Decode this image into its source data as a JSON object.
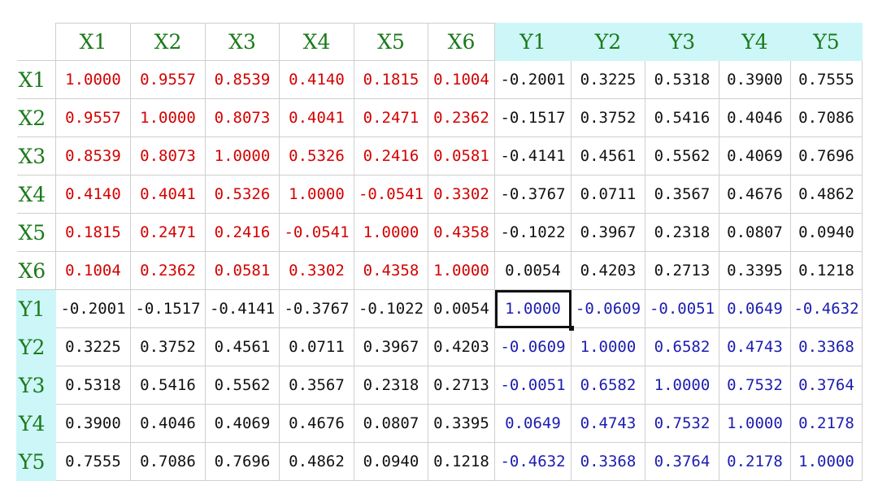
{
  "colors": {
    "header_green": "#1b7a1b",
    "x_block_red": "#d40000",
    "y_block_blue": "#1c1cb0",
    "normal_black": "#111111",
    "y_header_bg": "#ccf6f7",
    "grid": "#cfcfcf"
  },
  "selected_cell": "Y1,Y1",
  "table": {
    "columns": [
      "X1",
      "X2",
      "X3",
      "X4",
      "X5",
      "X6",
      "Y1",
      "Y2",
      "Y3",
      "Y4",
      "Y5"
    ],
    "rows": [
      {
        "label": "X1",
        "values": [
          "1.0000",
          "0.9557",
          "0.8539",
          "0.4140",
          "0.1815",
          "0.1004",
          "-0.2001",
          "0.3225",
          "0.5318",
          "0.3900",
          "0.7555"
        ]
      },
      {
        "label": "X2",
        "values": [
          "0.9557",
          "1.0000",
          "0.8073",
          "0.4041",
          "0.2471",
          "0.2362",
          "-0.1517",
          "0.3752",
          "0.5416",
          "0.4046",
          "0.7086"
        ]
      },
      {
        "label": "X3",
        "values": [
          "0.8539",
          "0.8073",
          "1.0000",
          "0.5326",
          "0.2416",
          "0.0581",
          "-0.4141",
          "0.4561",
          "0.5562",
          "0.4069",
          "0.7696"
        ]
      },
      {
        "label": "X4",
        "values": [
          "0.4140",
          "0.4041",
          "0.5326",
          "1.0000",
          "-0.0541",
          "0.3302",
          "-0.3767",
          "0.0711",
          "0.3567",
          "0.4676",
          "0.4862"
        ]
      },
      {
        "label": "X5",
        "values": [
          "0.1815",
          "0.2471",
          "0.2416",
          "-0.0541",
          "1.0000",
          "0.4358",
          "-0.1022",
          "0.3967",
          "0.2318",
          "0.0807",
          "0.0940"
        ]
      },
      {
        "label": "X6",
        "values": [
          "0.1004",
          "0.2362",
          "0.0581",
          "0.3302",
          "0.4358",
          "1.0000",
          "0.0054",
          "0.4203",
          "0.2713",
          "0.3395",
          "0.1218"
        ]
      },
      {
        "label": "Y1",
        "values": [
          "-0.2001",
          "-0.1517",
          "-0.4141",
          "-0.3767",
          "-0.1022",
          "0.0054",
          "1.0000",
          "-0.0609",
          "-0.0051",
          "0.0649",
          "-0.4632"
        ]
      },
      {
        "label": "Y2",
        "values": [
          "0.3225",
          "0.3752",
          "0.4561",
          "0.0711",
          "0.3967",
          "0.4203",
          "-0.0609",
          "1.0000",
          "0.6582",
          "0.4743",
          "0.3368"
        ]
      },
      {
        "label": "Y3",
        "values": [
          "0.5318",
          "0.5416",
          "0.5562",
          "0.3567",
          "0.2318",
          "0.2713",
          "-0.0051",
          "0.6582",
          "1.0000",
          "0.7532",
          "0.3764"
        ]
      },
      {
        "label": "Y4",
        "values": [
          "0.3900",
          "0.4046",
          "0.4069",
          "0.4676",
          "0.0807",
          "0.3395",
          "0.0649",
          "0.4743",
          "0.7532",
          "1.0000",
          "0.2178"
        ]
      },
      {
        "label": "Y5",
        "values": [
          "0.7555",
          "0.7086",
          "0.7696",
          "0.4862",
          "0.0940",
          "0.1218",
          "-0.4632",
          "0.3368",
          "0.3764",
          "0.2178",
          "1.0000"
        ]
      }
    ]
  }
}
